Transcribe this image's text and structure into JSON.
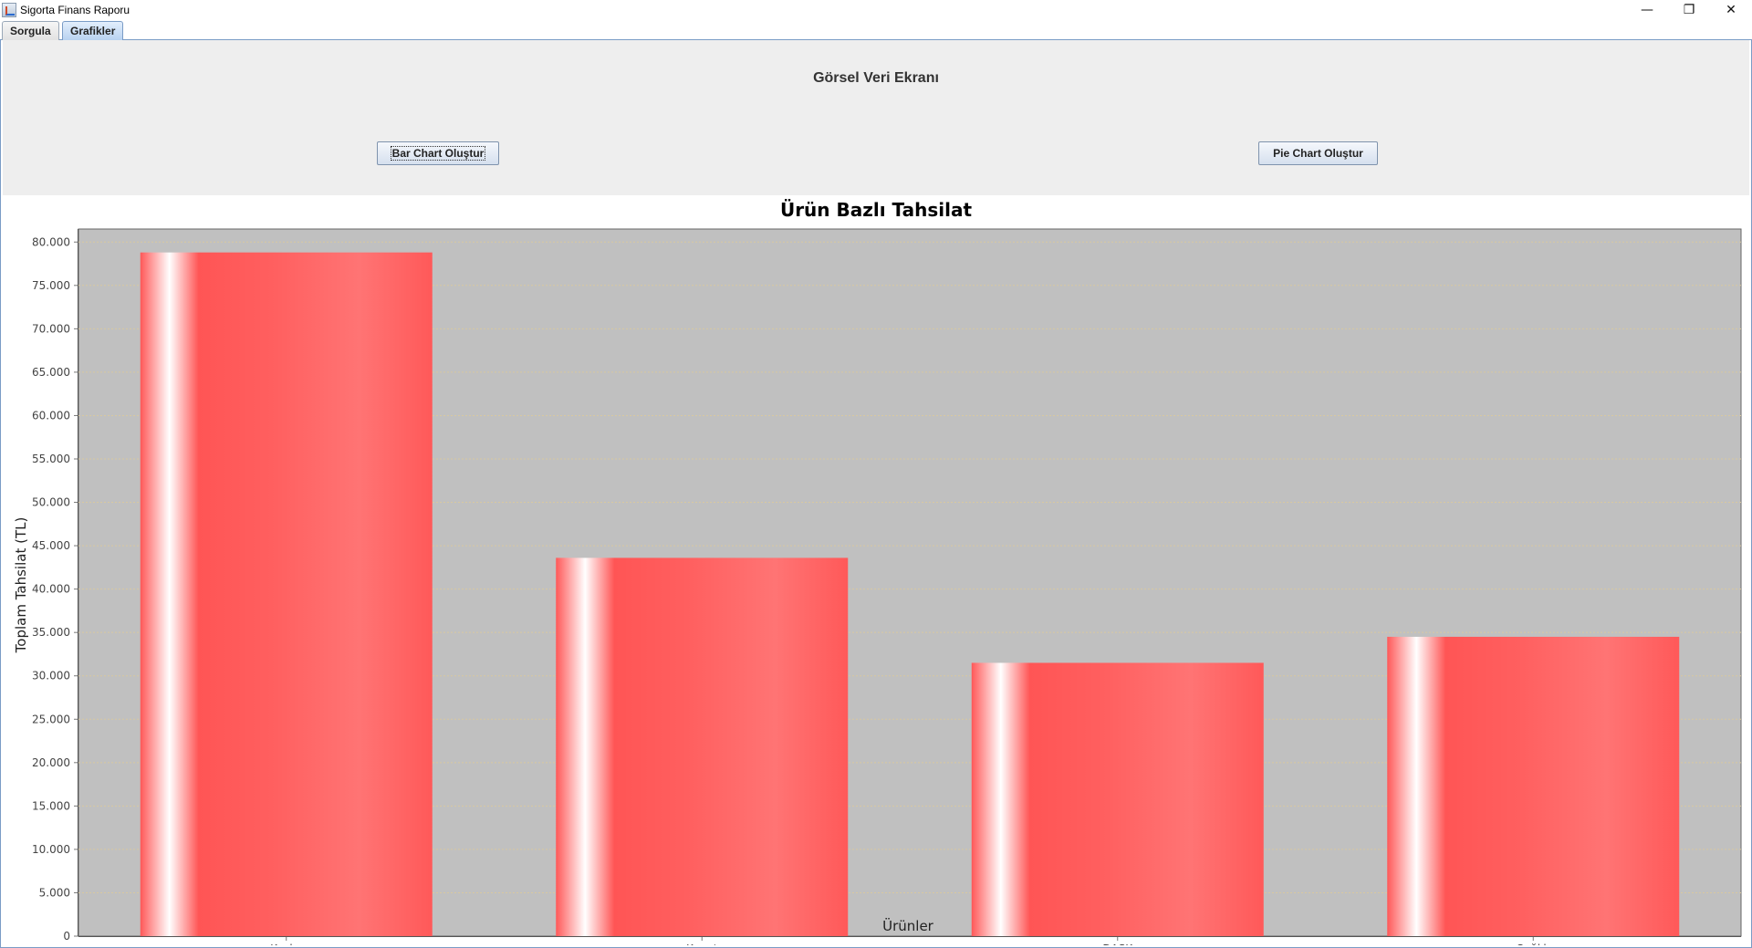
{
  "window": {
    "title": "Sigorta Finans Raporu",
    "controls": [
      "minimize-icon",
      "restore-icon",
      "close-icon"
    ]
  },
  "tabs": [
    {
      "label": "Sorgula",
      "active": false
    },
    {
      "label": "Grafikler",
      "active": true
    }
  ],
  "panel": {
    "title": "Görsel Veri Ekranı",
    "bar_button": "Bar Chart Oluştur",
    "pie_button": "Pie Chart Oluştur"
  },
  "chart_data": {
    "type": "bar",
    "title": "Ürün Bazlı Tahsilat",
    "xlabel": "Ürünler",
    "ylabel": "Toplam Tahsilat (TL)",
    "categories": [
      "Kasko",
      "Konut",
      "DASK",
      "Sağlık"
    ],
    "values": [
      78800,
      43600,
      31500,
      34500
    ],
    "ylim": [
      0,
      80000
    ],
    "yticks": [
      "0",
      "5.000",
      "10.000",
      "15.000",
      "20.000",
      "25.000",
      "30.000",
      "35.000",
      "40.000",
      "45.000",
      "50.000",
      "55.000",
      "60.000",
      "65.000",
      "70.000",
      "75.000",
      "80.000"
    ],
    "grid": true,
    "legend": "none",
    "colors": {
      "bar": "#ff5555",
      "plot_background": "#c0c0c0",
      "gridline": "#d8c8a0"
    }
  }
}
